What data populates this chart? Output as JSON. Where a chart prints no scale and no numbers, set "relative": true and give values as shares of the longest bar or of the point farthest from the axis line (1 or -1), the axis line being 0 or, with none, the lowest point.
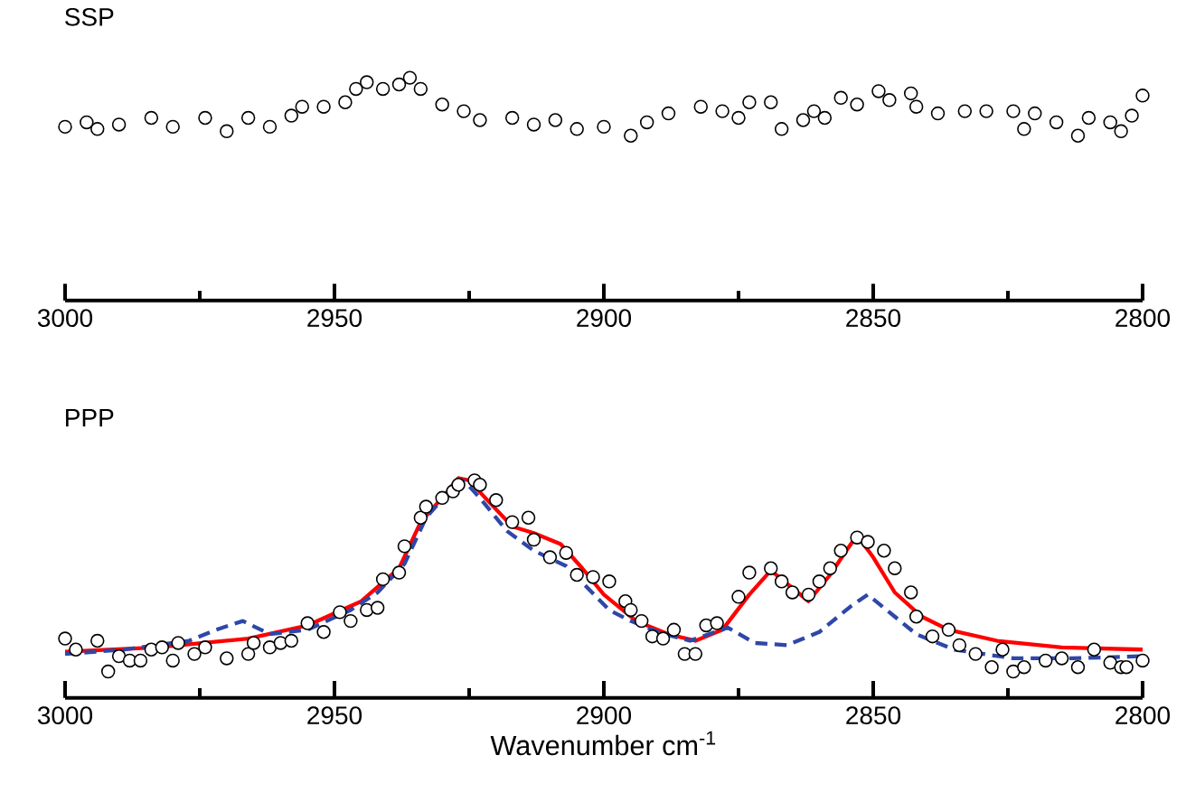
{
  "chart_data": [
    {
      "type": "scatter",
      "title": "SSP",
      "relative": true,
      "tick_labels": "x",
      "grid": false,
      "xlim": [
        3000,
        2800
      ],
      "xticks": [
        3000,
        {
          "value": 2975,
          "label": null
        },
        2950,
        {
          "value": 2925,
          "label": null
        },
        2900,
        {
          "value": 2875,
          "label": null
        },
        2850,
        {
          "value": 2825,
          "label": null
        },
        2800
      ],
      "series": [
        {
          "marker": "circle",
          "color": "#000000",
          "x": [
            3000,
            2996,
            2994,
            2990,
            2984,
            2980,
            2974,
            2970,
            2966,
            2962,
            2958,
            2956,
            2952,
            2948,
            2946,
            2944,
            2941,
            2938,
            2936,
            2934,
            2930,
            2926,
            2923,
            2917,
            2913,
            2909,
            2905,
            2900,
            2895,
            2892,
            2888,
            2882,
            2878,
            2875,
            2873,
            2869,
            2867,
            2863,
            2861,
            2859,
            2856,
            2853,
            2849,
            2847,
            2843,
            2842,
            2838,
            2833,
            2829,
            2824,
            2822,
            2820,
            2816,
            2812,
            2810,
            2806,
            2804,
            2802,
            2800
          ],
          "values": [
            0.78,
            0.8,
            0.77,
            0.79,
            0.82,
            0.78,
            0.82,
            0.76,
            0.82,
            0.78,
            0.83,
            0.87,
            0.87,
            0.89,
            0.95,
            0.98,
            0.95,
            0.97,
            1.0,
            0.95,
            0.88,
            0.85,
            0.81,
            0.82,
            0.79,
            0.81,
            0.77,
            0.78,
            0.74,
            0.8,
            0.84,
            0.87,
            0.85,
            0.82,
            0.89,
            0.89,
            0.77,
            0.81,
            0.85,
            0.82,
            0.91,
            0.88,
            0.94,
            0.9,
            0.93,
            0.87,
            0.84,
            0.85,
            0.85,
            0.85,
            0.77,
            0.84,
            0.8,
            0.74,
            0.82,
            0.8,
            0.76,
            0.83,
            0.92
          ]
        }
      ]
    },
    {
      "type": "scatter",
      "title": "PPP",
      "xlabel": "Wavenumber cm$^{-1}$",
      "relative": true,
      "tick_labels": "x",
      "grid": false,
      "xlim": [
        3000,
        2800
      ],
      "xticks": [
        3000,
        {
          "value": 2975,
          "label": null
        },
        2950,
        {
          "value": 2925,
          "label": null
        },
        2900,
        {
          "value": 2875,
          "label": null
        },
        2850,
        {
          "value": 2825,
          "label": null
        },
        2800
      ],
      "series": [
        {
          "marker": "circle",
          "color": "#000000",
          "x": [
            3000,
            2998,
            2994,
            2992,
            2990,
            2988,
            2986,
            2984,
            2982,
            2980,
            2979,
            2976,
            2974,
            2970,
            2966,
            2965,
            2962,
            2960,
            2958,
            2955,
            2952,
            2949,
            2947,
            2944,
            2942,
            2941,
            2938,
            2937,
            2934,
            2933,
            2930,
            2928,
            2927,
            2924,
            2923,
            2920,
            2917,
            2914,
            2913,
            2910,
            2907,
            2905,
            2902,
            2899,
            2896,
            2895,
            2893,
            2891,
            2889,
            2887,
            2885,
            2883,
            2881,
            2879,
            2875,
            2873,
            2869,
            2867,
            2865,
            2862,
            2860,
            2858,
            2856,
            2853,
            2851,
            2848,
            2846,
            2843,
            2842,
            2839,
            2836,
            2834,
            2831,
            2828,
            2826,
            2824,
            2822,
            2818,
            2815,
            2812,
            2809,
            2806,
            2804,
            2803,
            2800
          ],
          "values": [
            0.27,
            0.22,
            0.26,
            0.12,
            0.19,
            0.17,
            0.17,
            0.22,
            0.23,
            0.17,
            0.25,
            0.2,
            0.23,
            0.18,
            0.2,
            0.25,
            0.23,
            0.25,
            0.26,
            0.34,
            0.3,
            0.39,
            0.35,
            0.4,
            0.41,
            0.54,
            0.57,
            0.69,
            0.82,
            0.87,
            0.91,
            0.94,
            0.97,
            0.99,
            0.97,
            0.9,
            0.8,
            0.82,
            0.72,
            0.64,
            0.66,
            0.56,
            0.55,
            0.53,
            0.44,
            0.4,
            0.35,
            0.28,
            0.27,
            0.31,
            0.2,
            0.2,
            0.33,
            0.34,
            0.46,
            0.57,
            0.59,
            0.53,
            0.48,
            0.47,
            0.53,
            0.59,
            0.67,
            0.73,
            0.71,
            0.67,
            0.59,
            0.48,
            0.37,
            0.28,
            0.31,
            0.24,
            0.2,
            0.14,
            0.22,
            0.12,
            0.14,
            0.17,
            0.18,
            0.14,
            0.22,
            0.16,
            0.14,
            0.14,
            0.17
          ]
        },
        {
          "type": "line",
          "marker": "none",
          "line_style": "solid",
          "color": "#ff0000",
          "x": [
            3000,
            2983,
            2966,
            2955,
            2945,
            2938,
            2934,
            2929,
            2927,
            2925,
            2922,
            2917,
            2913,
            2908,
            2904,
            2900,
            2894,
            2888,
            2883,
            2878,
            2873,
            2869,
            2866,
            2862,
            2858,
            2855,
            2853,
            2850,
            2846,
            2841,
            2836,
            2827,
            2815,
            2800
          ],
          "values": [
            0.21,
            0.23,
            0.27,
            0.33,
            0.44,
            0.59,
            0.8,
            0.94,
            1.0,
            0.99,
            0.91,
            0.78,
            0.75,
            0.7,
            0.59,
            0.47,
            0.35,
            0.29,
            0.26,
            0.31,
            0.47,
            0.58,
            0.52,
            0.44,
            0.56,
            0.67,
            0.74,
            0.64,
            0.48,
            0.37,
            0.31,
            0.26,
            0.23,
            0.22
          ]
        },
        {
          "type": "line",
          "marker": "none",
          "line_style": "dashed",
          "color": "#2e47a8",
          "x": [
            3000,
            2989,
            2977,
            2972,
            2967,
            2962,
            2955,
            2947,
            2942,
            2937,
            2933,
            2928,
            2926,
            2923,
            2918,
            2913,
            2907,
            2899,
            2895,
            2890,
            2884,
            2877,
            2872,
            2866,
            2860,
            2854,
            2851,
            2846,
            2842,
            2835,
            2824,
            2813,
            2800
          ],
          "values": [
            0.2,
            0.22,
            0.26,
            0.31,
            0.35,
            0.29,
            0.31,
            0.4,
            0.48,
            0.61,
            0.82,
            0.96,
            0.99,
            0.91,
            0.76,
            0.67,
            0.6,
            0.4,
            0.35,
            0.3,
            0.26,
            0.32,
            0.25,
            0.24,
            0.3,
            0.42,
            0.47,
            0.37,
            0.29,
            0.22,
            0.18,
            0.18,
            0.19
          ]
        }
      ]
    }
  ]
}
